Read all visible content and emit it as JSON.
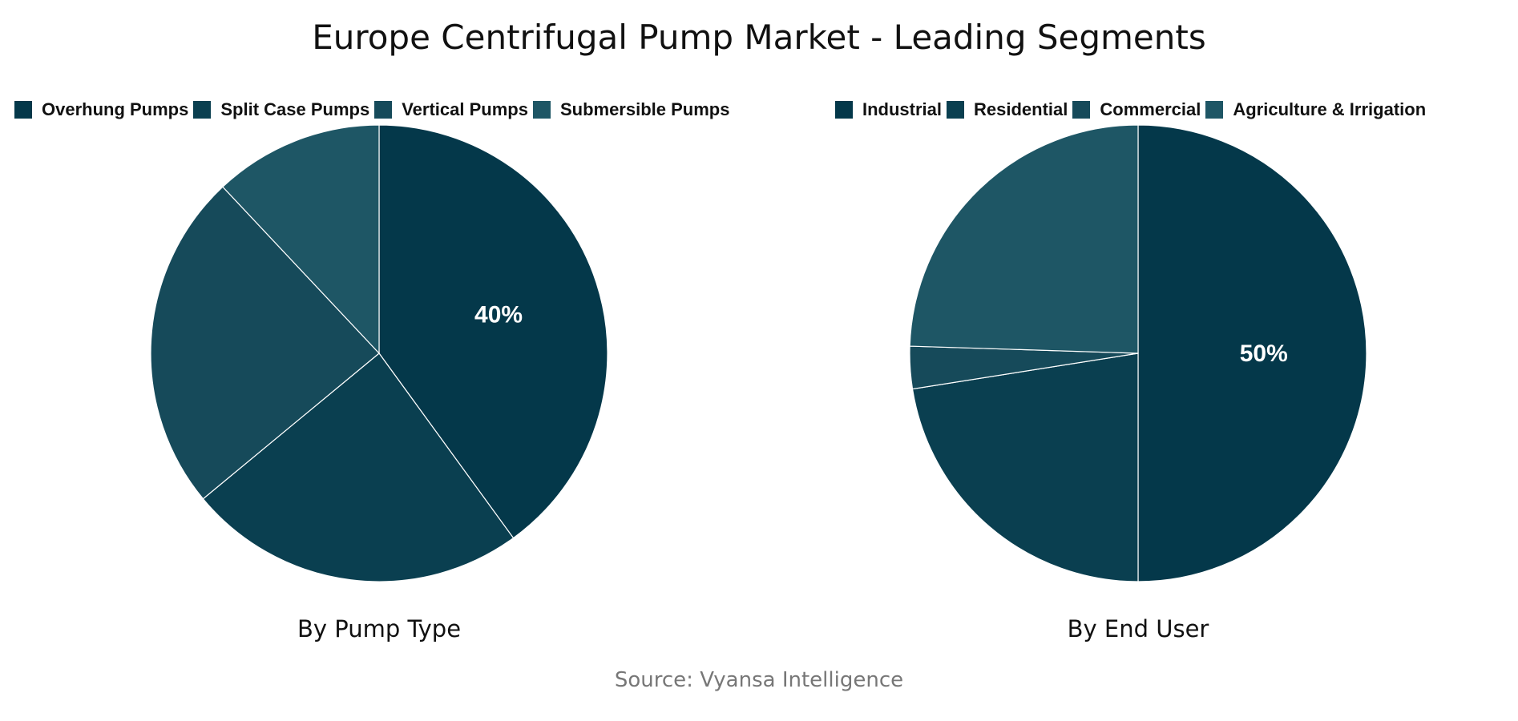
{
  "title": "Europe Centrifugal Pump Market - Leading Segments",
  "source": "Source: Vyansa Intelligence",
  "chart_data": [
    {
      "type": "pie",
      "title": "By Pump Type",
      "legend_position": "top",
      "categories": [
        "Overhung Pumps",
        "Split Case Pumps",
        "Vertical Pumps",
        "Submersible Pumps"
      ],
      "values": [
        40,
        24,
        24,
        12
      ],
      "colors": [
        "#04384a",
        "#0a3f50",
        "#164a5a",
        "#1e5665"
      ],
      "data_labels": [
        "40%",
        "",
        "",
        ""
      ]
    },
    {
      "type": "pie",
      "title": "By End User",
      "legend_position": "top",
      "categories": [
        "Industrial",
        "Residential",
        "Commercial",
        "Agriculture & Irrigation"
      ],
      "values": [
        50,
        22.5,
        3,
        24.5
      ],
      "colors": [
        "#04384a",
        "#0a3f50",
        "#164a5a",
        "#1e5665"
      ],
      "data_labels": [
        "50%",
        "",
        "",
        ""
      ]
    }
  ]
}
